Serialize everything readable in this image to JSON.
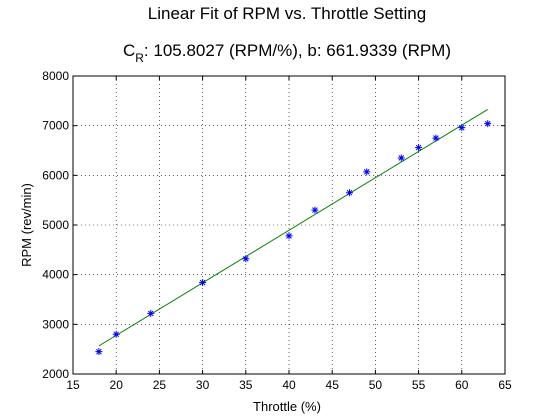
{
  "chart_data": {
    "type": "scatter",
    "title": "Linear Fit of RPM vs. Throttle Setting",
    "subtitle": {
      "symbol": "C",
      "subscript": "R",
      "rest": ": 105.8027 (RPM/%), b: 661.9339 (RPM)"
    },
    "xlabel": "Throttle (%)",
    "ylabel": "RPM (rev/min)",
    "xlim": [
      15,
      65
    ],
    "ylim": [
      2000,
      8000
    ],
    "xticks": [
      15,
      20,
      25,
      30,
      35,
      40,
      45,
      50,
      55,
      60,
      65
    ],
    "yticks": [
      2000,
      3000,
      4000,
      5000,
      6000,
      7000,
      8000
    ],
    "grid": true,
    "series": [
      {
        "marker": "*",
        "color": "#0000ff",
        "x": [
          18,
          20,
          24,
          30,
          35,
          40,
          43,
          47,
          49,
          53,
          55,
          57,
          60,
          63
        ],
        "y": [
          2450,
          2800,
          3220,
          3840,
          4320,
          4780,
          5300,
          5650,
          6070,
          6350,
          6560,
          6750,
          6960,
          7040
        ]
      },
      {
        "line": "fit",
        "color": "#008000",
        "x": [
          18,
          63
        ],
        "y": [
          2566.4,
          7327.5
        ]
      }
    ]
  }
}
